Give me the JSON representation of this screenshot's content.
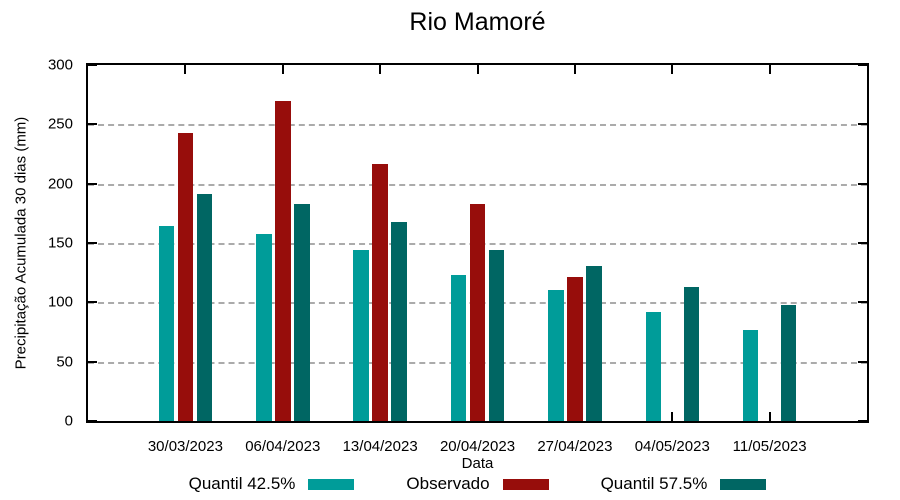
{
  "title": "Rio Mamoré",
  "chart_data": {
    "type": "bar",
    "title": "Rio Mamoré",
    "xlabel": "Data",
    "ylabel": "Precipitação Acumulada 30 dias (mm)",
    "categories": [
      "30/03/2023",
      "06/04/2023",
      "13/04/2023",
      "20/04/2023",
      "27/04/2023",
      "04/05/2023",
      "11/05/2023"
    ],
    "series": [
      {
        "name": "Quantil 42.5%",
        "color": "#009C99",
        "values": [
          164,
          158,
          144,
          123,
          110,
          92,
          77
        ]
      },
      {
        "name": "Observado",
        "color": "#970D0B",
        "values": [
          243,
          270,
          217,
          183,
          121,
          null,
          null
        ]
      },
      {
        "name": "Quantil 57.5%",
        "color": "#006663",
        "values": [
          191,
          183,
          168,
          144,
          131,
          113,
          98
        ]
      }
    ],
    "ylim": [
      0,
      300
    ],
    "ytick_step": 50,
    "grid": true,
    "gridline_color": "#ababab",
    "legend_position": "bottom",
    "axis_color": "#000000",
    "background": "#ffffff"
  }
}
